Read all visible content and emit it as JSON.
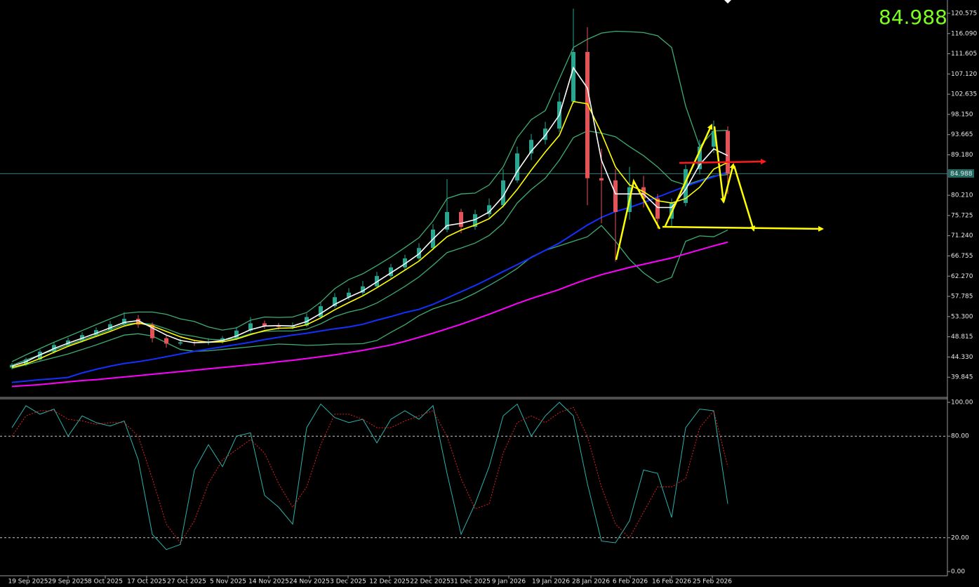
{
  "chart_data": {
    "type": "candlestick",
    "last_price": 84.988,
    "bull_color": "#2aa58f",
    "bear_color": "#e3545a",
    "xlim": [
      -0.85,
      66.65
    ],
    "ylim": [
      35.52,
      123.53
    ],
    "yticks": [
      120.575,
      {
        "value": 116.09,
        "label": "116.090"
      },
      111.605,
      {
        "value": 107.12,
        "label": "107.120"
      },
      102.635,
      {
        "value": 98.15,
        "label": "98.150"
      },
      93.665,
      {
        "value": 89.18,
        "label": "89.180"
      },
      {
        "value": 80.21,
        "label": "80.210"
      },
      75.725,
      {
        "value": 71.24,
        "label": "71.240"
      },
      66.755,
      {
        "value": 62.27,
        "label": "62.270"
      },
      57.785,
      {
        "value": 53.3,
        "label": "53.300"
      },
      48.815,
      {
        "value": 44.33,
        "label": "44.330"
      },
      39.845
    ],
    "xticks": [
      {
        "value": 1.15,
        "label": "19 Sep 2025"
      },
      {
        "value": 4,
        "label": "29 Sep 2025"
      },
      {
        "value": 6.65,
        "label": "8 Oct 2025"
      },
      {
        "value": 9.6,
        "label": "17 Oct 2025"
      },
      {
        "value": 12.45,
        "label": "27 Oct 2025"
      },
      {
        "value": 15.4,
        "label": "5 Nov 2025"
      },
      {
        "value": 18.3,
        "label": "14 Nov 2025"
      },
      {
        "value": 21.2,
        "label": "24 Nov 2025"
      },
      {
        "value": 23.95,
        "label": "3 Dec 2025"
      },
      {
        "value": 26.9,
        "label": "12 Dec 2025"
      },
      {
        "value": 29.8,
        "label": "22 Dec 2025"
      },
      {
        "value": 32.65,
        "label": "31 Dec 2025"
      },
      {
        "value": 35.4,
        "label": "9 Jan 2026"
      },
      {
        "value": 38.4,
        "label": "19 Jan 2026"
      },
      {
        "value": 41.25,
        "label": "28 Jan 2026"
      },
      {
        "value": 44.05,
        "label": "6 Feb 2026"
      },
      {
        "value": 47,
        "label": "16 Feb 2026"
      },
      {
        "value": 49.9,
        "label": "25 Feb 2026"
      }
    ],
    "open": [
      42.0,
      42.6,
      43.8,
      45.5,
      47.0,
      48.0,
      49.2,
      50.3,
      51.6,
      52.8,
      51.5,
      48.5,
      47.3,
      47.6,
      47.5,
      47.8,
      48.5,
      50.2,
      51.8,
      51.2,
      51.0,
      51.3,
      53.2,
      55.6,
      57.6,
      58.6,
      60.0,
      62.3,
      64.2,
      66.2,
      68.5,
      72.6,
      76.5,
      73.2,
      76.0,
      78.0,
      83.5,
      89.5,
      92.5,
      95.0,
      101.0,
      112.0,
      84.0,
      83.5,
      76.5,
      82.0,
      79.5,
      75.0,
      78.5,
      86.0,
      91.0,
      94.5
    ],
    "high": [
      43.0,
      44.2,
      46.0,
      47.5,
      48.6,
      49.8,
      50.9,
      52.3,
      54.3,
      53.6,
      52.0,
      49.2,
      48.4,
      48.2,
      48.5,
      49.0,
      51.0,
      53.2,
      52.4,
      51.9,
      52.0,
      54.0,
      56.4,
      58.5,
      59.6,
      61.2,
      63.2,
      65.0,
      67.0,
      69.6,
      73.8,
      83.8,
      77.2,
      77.0,
      79.5,
      86.0,
      91.0,
      93.8,
      96.5,
      103.0,
      121.6,
      117.5,
      90.5,
      86.0,
      86.5,
      84.5,
      80.5,
      79.5,
      87.0,
      92.5,
      96.8,
      95.5
    ],
    "low": [
      41.6,
      42.3,
      43.5,
      45.1,
      46.6,
      47.6,
      48.8,
      50.0,
      51.2,
      50.8,
      47.6,
      46.4,
      46.9,
      46.8,
      47.0,
      47.3,
      48.1,
      49.8,
      50.6,
      50.4,
      50.5,
      51.0,
      52.8,
      55.2,
      57.0,
      58.0,
      59.6,
      61.8,
      63.6,
      65.8,
      68.0,
      72.0,
      71.8,
      72.6,
      75.2,
      77.5,
      83.0,
      88.0,
      91.5,
      94.2,
      100.5,
      78.0,
      74.0,
      65.5,
      74.8,
      77.5,
      72.8,
      73.2,
      77.8,
      84.8,
      89.6,
      80.5
    ],
    "close": [
      42.6,
      43.8,
      45.5,
      47.0,
      48.0,
      49.2,
      50.3,
      51.6,
      52.8,
      51.5,
      48.5,
      47.3,
      47.6,
      47.5,
      47.8,
      48.5,
      50.2,
      51.8,
      51.2,
      51.0,
      51.3,
      53.2,
      55.6,
      57.6,
      58.6,
      60.0,
      62.3,
      64.2,
      66.2,
      68.5,
      72.6,
      76.5,
      73.2,
      76.0,
      78.0,
      83.5,
      89.5,
      92.5,
      95.0,
      101.0,
      112.0,
      84.0,
      83.5,
      76.5,
      82.0,
      79.5,
      75.0,
      78.5,
      86.0,
      91.0,
      94.5,
      84.988
    ],
    "overlays": [
      {
        "color": "#3dac72",
        "values": [
          43.3,
          44.8,
          46.2,
          47.6,
          48.9,
          50.2,
          51.5,
          52.8,
          54.0,
          54.3,
          54.3,
          53.8,
          52.8,
          52.2,
          51.0,
          50.3,
          50.8,
          52.5,
          53.2,
          53.1,
          53.2,
          54.2,
          56.5,
          59.5,
          61.5,
          62.8,
          64.6,
          66.5,
          68.6,
          70.8,
          74.5,
          79.5,
          80.5,
          80.7,
          82.5,
          86.5,
          93.0,
          97.0,
          99.0,
          106.0,
          113.0,
          114.8,
          116.2,
          116.6,
          116.5,
          116.3,
          115.6,
          113.0,
          100.0,
          91.0,
          94.5,
          94.6
        ]
      },
      {
        "color": "#3dac72",
        "values": [
          42.5,
          43.7,
          44.8,
          45.9,
          47.0,
          48.1,
          49.2,
          50.4,
          51.6,
          51.9,
          51.6,
          50.6,
          49.4,
          48.9,
          48.3,
          48.1,
          48.5,
          49.5,
          50.0,
          50.1,
          50.1,
          50.5,
          51.7,
          53.3,
          54.3,
          55.0,
          56.3,
          58.1,
          60.0,
          62.1,
          64.7,
          67.5,
          68.5,
          69.6,
          71.3,
          74.0,
          78.5,
          81.5,
          84.0,
          88.0,
          93.0,
          94.5,
          94.0,
          93.2,
          91.0,
          89.0,
          86.5,
          83.5,
          82.5,
          83.5,
          84.5,
          84.8
        ]
      },
      {
        "color": "#3dac72",
        "values": [
          41.8,
          42.6,
          43.4,
          44.2,
          45.0,
          46.0,
          47.0,
          48.1,
          49.2,
          49.5,
          49.0,
          47.5,
          46.0,
          45.6,
          45.7,
          46.0,
          46.3,
          46.6,
          46.9,
          47.2,
          47.1,
          46.9,
          47.0,
          47.2,
          47.2,
          47.3,
          48.0,
          49.8,
          51.5,
          53.5,
          55.0,
          56.0,
          57.0,
          58.5,
          60.2,
          62.0,
          64.0,
          66.5,
          68.0,
          69.0,
          70.0,
          71.0,
          73.5,
          70.0,
          66.0,
          63.0,
          60.8,
          62.0,
          70.0,
          71.2,
          71.0,
          72.5
        ]
      },
      {
        "color": "#ff00ff",
        "values": [
          37.8,
          38.0,
          38.2,
          38.5,
          38.8,
          39.1,
          39.3,
          39.6,
          39.9,
          40.2,
          40.5,
          40.8,
          41.1,
          41.4,
          41.7,
          42.0,
          42.3,
          42.6,
          42.9,
          43.3,
          43.6,
          44.0,
          44.4,
          44.8,
          45.3,
          45.8,
          46.4,
          47.0,
          47.8,
          48.7,
          49.6,
          50.6,
          51.6,
          52.7,
          53.8,
          55.0,
          56.2,
          57.3,
          58.3,
          59.3,
          60.5,
          61.6,
          62.6,
          63.4,
          64.2,
          64.9,
          65.6,
          66.3,
          67.2,
          68.1,
          69.0,
          69.8
        ]
      },
      {
        "color": "#1430ff",
        "values": [
          38.7,
          39.0,
          39.3,
          39.5,
          39.8,
          40.8,
          41.6,
          42.3,
          42.9,
          43.3,
          43.8,
          44.4,
          45.0,
          45.6,
          46.1,
          46.6,
          47.1,
          47.6,
          48.2,
          48.7,
          49.2,
          49.6,
          50.1,
          50.6,
          51.0,
          51.6,
          52.5,
          53.3,
          54.2,
          54.9,
          56.0,
          57.4,
          58.8,
          60.2,
          61.7,
          63.3,
          64.8,
          66.4,
          68.0,
          69.6,
          71.6,
          73.6,
          75.3,
          76.6,
          77.5,
          78.6,
          79.8,
          81.0,
          82.2,
          83.3,
          84.3,
          85.4
        ]
      },
      {
        "color": "#ffff00",
        "values": [
          42.0,
          42.8,
          44.0,
          45.4,
          46.7,
          47.8,
          48.9,
          50.0,
          51.2,
          51.9,
          51.2,
          50.0,
          48.8,
          48.0,
          47.6,
          47.7,
          48.3,
          49.3,
          50.2,
          50.7,
          50.8,
          51.5,
          53.0,
          54.8,
          56.4,
          57.9,
          59.7,
          61.6,
          63.6,
          65.6,
          68.3,
          71.0,
          72.5,
          73.6,
          75.0,
          77.8,
          81.5,
          85.8,
          89.8,
          93.5,
          101.0,
          100.5,
          94.0,
          86.5,
          82.5,
          81.0,
          79.0,
          78.5,
          79.5,
          82.0,
          86.0,
          87.5
        ]
      },
      {
        "color": "#ffffff",
        "values": [
          42.3,
          43.3,
          44.8,
          46.2,
          47.4,
          48.5,
          49.6,
          50.8,
          52.0,
          52.4,
          50.8,
          49.2,
          48.0,
          47.5,
          47.6,
          48.0,
          49.0,
          50.4,
          51.2,
          51.3,
          51.2,
          52.2,
          54.0,
          56.0,
          57.6,
          59.0,
          61.0,
          63.0,
          65.0,
          67.2,
          70.5,
          73.5,
          74.0,
          74.8,
          76.5,
          80.0,
          85.5,
          90.0,
          93.5,
          98.0,
          108.5,
          104.0,
          88.0,
          80.5,
          80.5,
          80.5,
          77.5,
          77.5,
          81.5,
          87.0,
          90.5,
          89.0
        ]
      }
    ],
    "stochastic": {
      "ylim": [
        0,
        100
      ],
      "yticks": [
        {
          "value": 100,
          "label": "100.00"
        },
        {
          "value": 80,
          "label": "80.00"
        },
        {
          "value": 20,
          "label": "20.00"
        },
        {
          "value": 0,
          "label": "0.00"
        }
      ],
      "levels": [
        80,
        20
      ],
      "series": [
        {
          "color": "#2ab3ad",
          "dash": false,
          "values": [
            85,
            98,
            93,
            96,
            80,
            92,
            88,
            86,
            89,
            66,
            22,
            13,
            16,
            60,
            75,
            62,
            80,
            82,
            45,
            38,
            28,
            85,
            99,
            91,
            88,
            90,
            76,
            90,
            95,
            90,
            98,
            58,
            22,
            40,
            62,
            92,
            99,
            80,
            92,
            100,
            92,
            52,
            18,
            17,
            30,
            60,
            58,
            32,
            85,
            96,
            95,
            40
          ]
        },
        {
          "color": "#e02020",
          "dash": true,
          "values": [
            80,
            92,
            95,
            95,
            90,
            89,
            87,
            88,
            88,
            80,
            55,
            28,
            17,
            30,
            52,
            66,
            72,
            78,
            70,
            52,
            38,
            50,
            75,
            93,
            93,
            90,
            85,
            85,
            89,
            92,
            95,
            80,
            55,
            37,
            40,
            70,
            88,
            92,
            88,
            94,
            97,
            80,
            50,
            28,
            20,
            35,
            50,
            50,
            55,
            85,
            95,
            62
          ]
        }
      ]
    }
  }
}
